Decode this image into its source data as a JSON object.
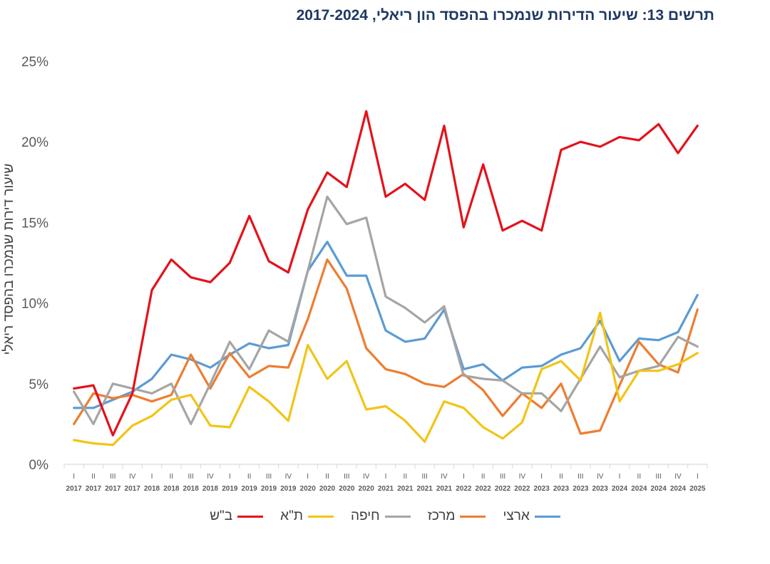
{
  "chart_data": {
    "type": "line",
    "title": "תרשים 13: שיעור הדירות שנמכרו בהפסד הון ריאלי, 2017-2024",
    "ylabel": "שיעור דירות שנמכרו בהפסד ריאלי",
    "xlabel": "",
    "ylim": [
      0,
      25
    ],
    "y_ticks": [
      0,
      5,
      10,
      15,
      20,
      25
    ],
    "y_tick_labels": [
      "0%",
      "5%",
      "10%",
      "15%",
      "20%",
      "25%"
    ],
    "legend_position": "bottom",
    "categories": [
      {
        "quarter": "I",
        "year": "2017"
      },
      {
        "quarter": "II",
        "year": "2017"
      },
      {
        "quarter": "III",
        "year": "2017"
      },
      {
        "quarter": "IV",
        "year": "2017"
      },
      {
        "quarter": "I",
        "year": "2018"
      },
      {
        "quarter": "II",
        "year": "2018"
      },
      {
        "quarter": "III",
        "year": "2018"
      },
      {
        "quarter": "IV",
        "year": "2018"
      },
      {
        "quarter": "I",
        "year": "2019"
      },
      {
        "quarter": "II",
        "year": "2019"
      },
      {
        "quarter": "III",
        "year": "2019"
      },
      {
        "quarter": "IV",
        "year": "2019"
      },
      {
        "quarter": "I",
        "year": "2020"
      },
      {
        "quarter": "II",
        "year": "2020"
      },
      {
        "quarter": "III",
        "year": "2020"
      },
      {
        "quarter": "IV",
        "year": "2020"
      },
      {
        "quarter": "I",
        "year": "2021"
      },
      {
        "quarter": "II",
        "year": "2021"
      },
      {
        "quarter": "III",
        "year": "2021"
      },
      {
        "quarter": "IV",
        "year": "2021"
      },
      {
        "quarter": "I",
        "year": "2022"
      },
      {
        "quarter": "II",
        "year": "2022"
      },
      {
        "quarter": "III",
        "year": "2022"
      },
      {
        "quarter": "IV",
        "year": "2022"
      },
      {
        "quarter": "I",
        "year": "2023"
      },
      {
        "quarter": "II",
        "year": "2023"
      },
      {
        "quarter": "III",
        "year": "2023"
      },
      {
        "quarter": "IV",
        "year": "2023"
      },
      {
        "quarter": "I",
        "year": "2024"
      },
      {
        "quarter": "II",
        "year": "2024"
      },
      {
        "quarter": "III",
        "year": "2024"
      },
      {
        "quarter": "IV",
        "year": "2024"
      },
      {
        "quarter": "I",
        "year": "2025"
      }
    ],
    "series": [
      {
        "name": "ארצי",
        "color": "#5b9bd5",
        "values": [
          3.5,
          3.5,
          4.0,
          4.5,
          5.3,
          6.8,
          6.5,
          6.0,
          6.8,
          7.5,
          7.2,
          7.4,
          12.0,
          13.8,
          11.7,
          11.7,
          8.3,
          7.6,
          7.8,
          9.6,
          5.9,
          6.2,
          5.2,
          6.0,
          6.1,
          6.8,
          7.2,
          8.9,
          6.4,
          7.8,
          7.7,
          8.2,
          10.5
        ]
      },
      {
        "name": "מרכז",
        "color": "#ed7d31",
        "values": [
          2.5,
          4.4,
          4.1,
          4.3,
          3.9,
          4.3,
          6.8,
          4.7,
          6.9,
          5.4,
          6.1,
          6.0,
          9.0,
          12.7,
          10.9,
          7.2,
          5.9,
          5.6,
          5.0,
          4.8,
          5.6,
          4.6,
          3.0,
          4.4,
          3.5,
          5.0,
          1.9,
          2.1,
          4.9,
          7.6,
          6.2,
          5.7,
          9.6
        ]
      },
      {
        "name": "חיפה",
        "color": "#a5a5a5",
        "values": [
          4.5,
          2.5,
          5.0,
          4.7,
          4.4,
          5.0,
          2.5,
          5.0,
          7.6,
          5.9,
          8.3,
          7.6,
          12.0,
          16.6,
          14.9,
          15.3,
          10.4,
          9.7,
          8.8,
          9.8,
          5.5,
          5.3,
          5.2,
          4.4,
          4.4,
          3.3,
          5.3,
          7.3,
          5.4,
          5.8,
          6.1,
          7.9,
          7.3
        ]
      },
      {
        "name": "ת\"א",
        "color": "#f2c416",
        "values": [
          1.5,
          1.3,
          1.2,
          2.4,
          3.0,
          4.0,
          4.3,
          2.4,
          2.3,
          4.8,
          3.9,
          2.7,
          7.4,
          5.3,
          6.4,
          3.4,
          3.6,
          2.7,
          1.4,
          3.9,
          3.5,
          2.3,
          1.6,
          2.6,
          5.9,
          6.4,
          5.2,
          9.4,
          3.9,
          5.8,
          5.8,
          6.2,
          6.9
        ]
      },
      {
        "name": "ב\"ש",
        "color": "#e3121a",
        "values": [
          4.7,
          4.9,
          1.8,
          4.4,
          10.8,
          12.7,
          11.6,
          11.3,
          12.5,
          15.4,
          12.6,
          11.9,
          15.8,
          18.1,
          17.2,
          21.9,
          16.6,
          17.4,
          16.4,
          21.0,
          14.7,
          18.6,
          14.5,
          15.1,
          14.5,
          19.5,
          20.0,
          19.7,
          20.3,
          20.1,
          21.1,
          19.3,
          21.0
        ]
      }
    ]
  }
}
